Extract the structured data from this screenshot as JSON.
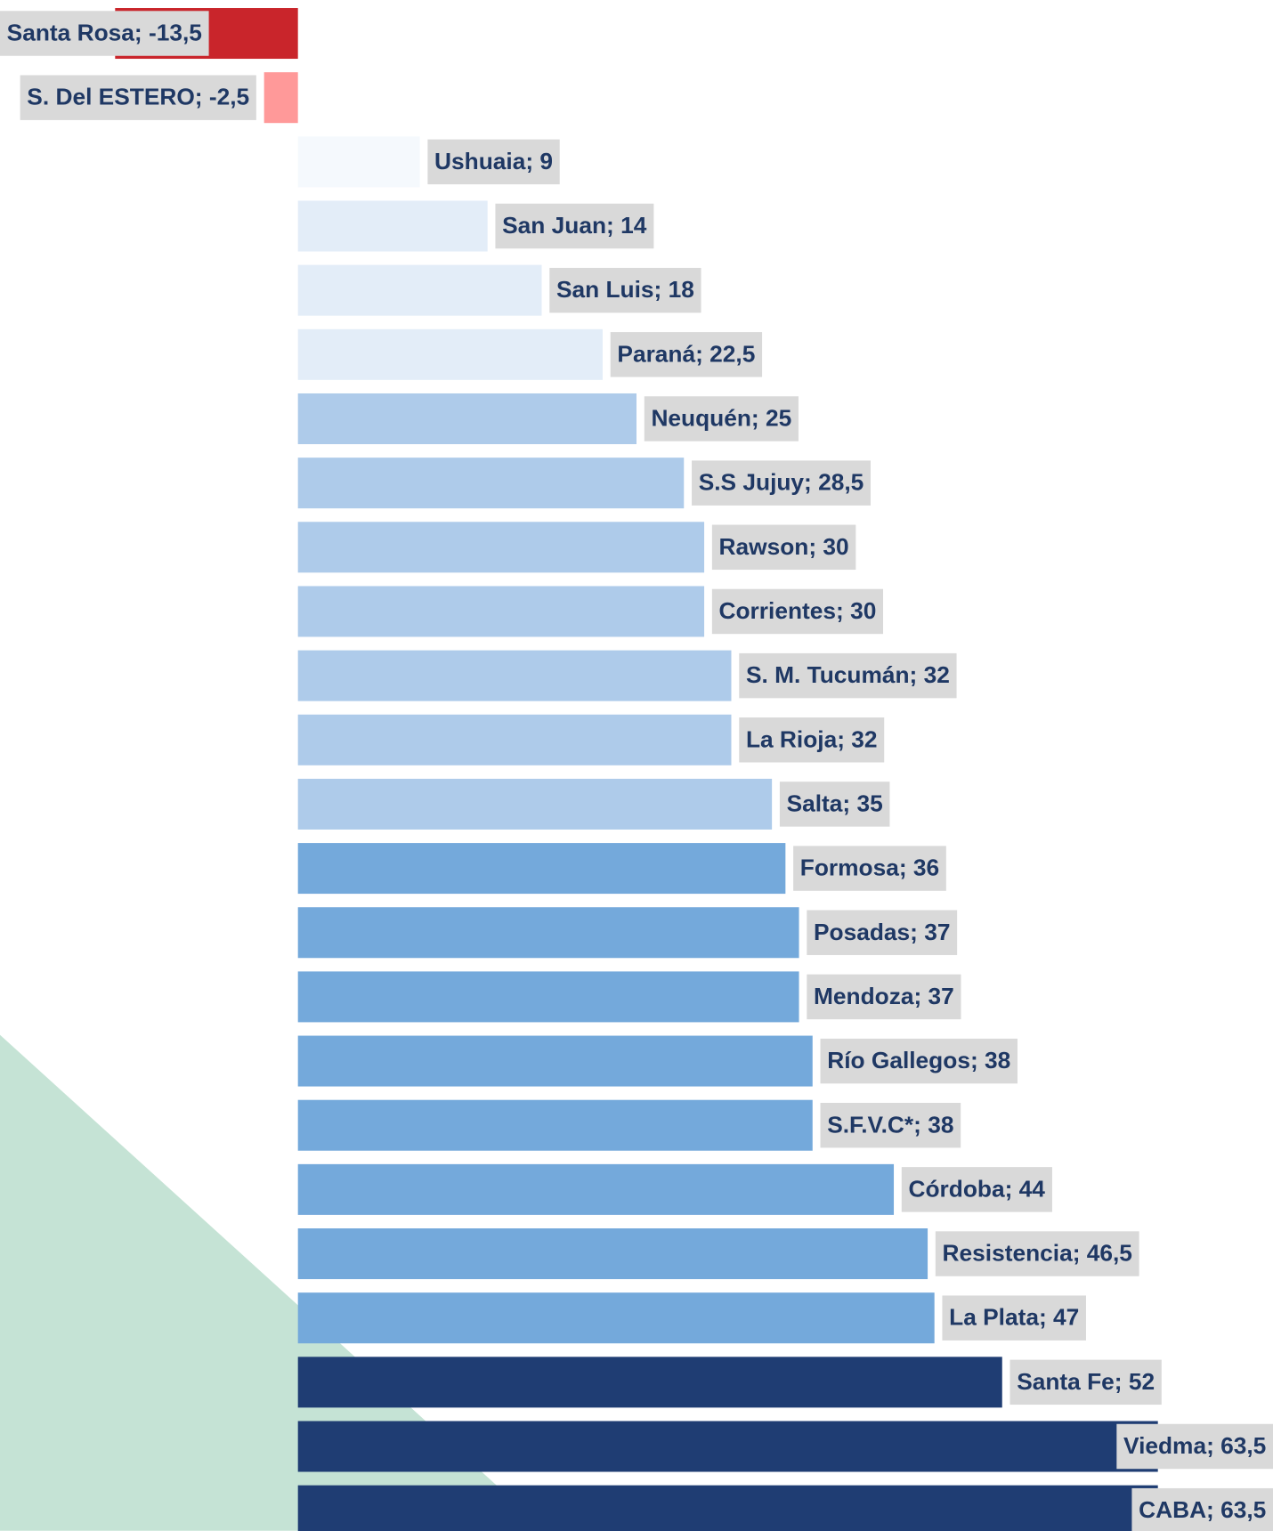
{
  "chart_data": {
    "type": "bar",
    "orientation": "horizontal",
    "values": [
      -13.5,
      -2.5,
      9,
      14,
      18,
      22.5,
      25,
      28.5,
      30,
      30,
      32,
      32,
      35,
      36,
      37,
      37,
      38,
      38,
      44,
      46.5,
      47,
      52,
      63.5,
      63.5
    ],
    "value_labels": [
      "Santa Rosa; -13,5",
      "S. Del ESTERO; -2,5",
      "Ushuaia; 9",
      "San Juan; 14",
      "San Luis; 18",
      "Paraná; 22,5",
      "Neuquén; 25",
      "S.S Jujuy; 28,5",
      "Rawson; 30",
      "Corrientes; 30",
      "S. M. Tucumán; 32",
      "La Rioja; 32",
      "Salta; 35",
      "Formosa; 36",
      "Posadas; 37",
      "Mendoza; 37",
      "Río Gallegos; 38",
      "S.F.V.C*; 38",
      "Córdoba; 44",
      "Resistencia; 46,5",
      "La Plata; 47",
      "Santa Fe; 52",
      "Viedma; 63,5",
      "CABA; 63,5"
    ],
    "colors": [
      "#c9252b",
      "#ff9999",
      "#f5f9fd",
      "#e3edf8",
      "#e3edf8",
      "#e3edf8",
      "#aecbea",
      "#aecbea",
      "#aecbea",
      "#aecbea",
      "#aecbea",
      "#aecbea",
      "#aecbea",
      "#74a9db",
      "#74a9db",
      "#74a9db",
      "#74a9db",
      "#74a9db",
      "#74a9db",
      "#74a9db",
      "#74a9db",
      "#1f3d73",
      "#1f3d73",
      "#1f3d73"
    ],
    "xlim": [
      -22,
      72
    ]
  }
}
